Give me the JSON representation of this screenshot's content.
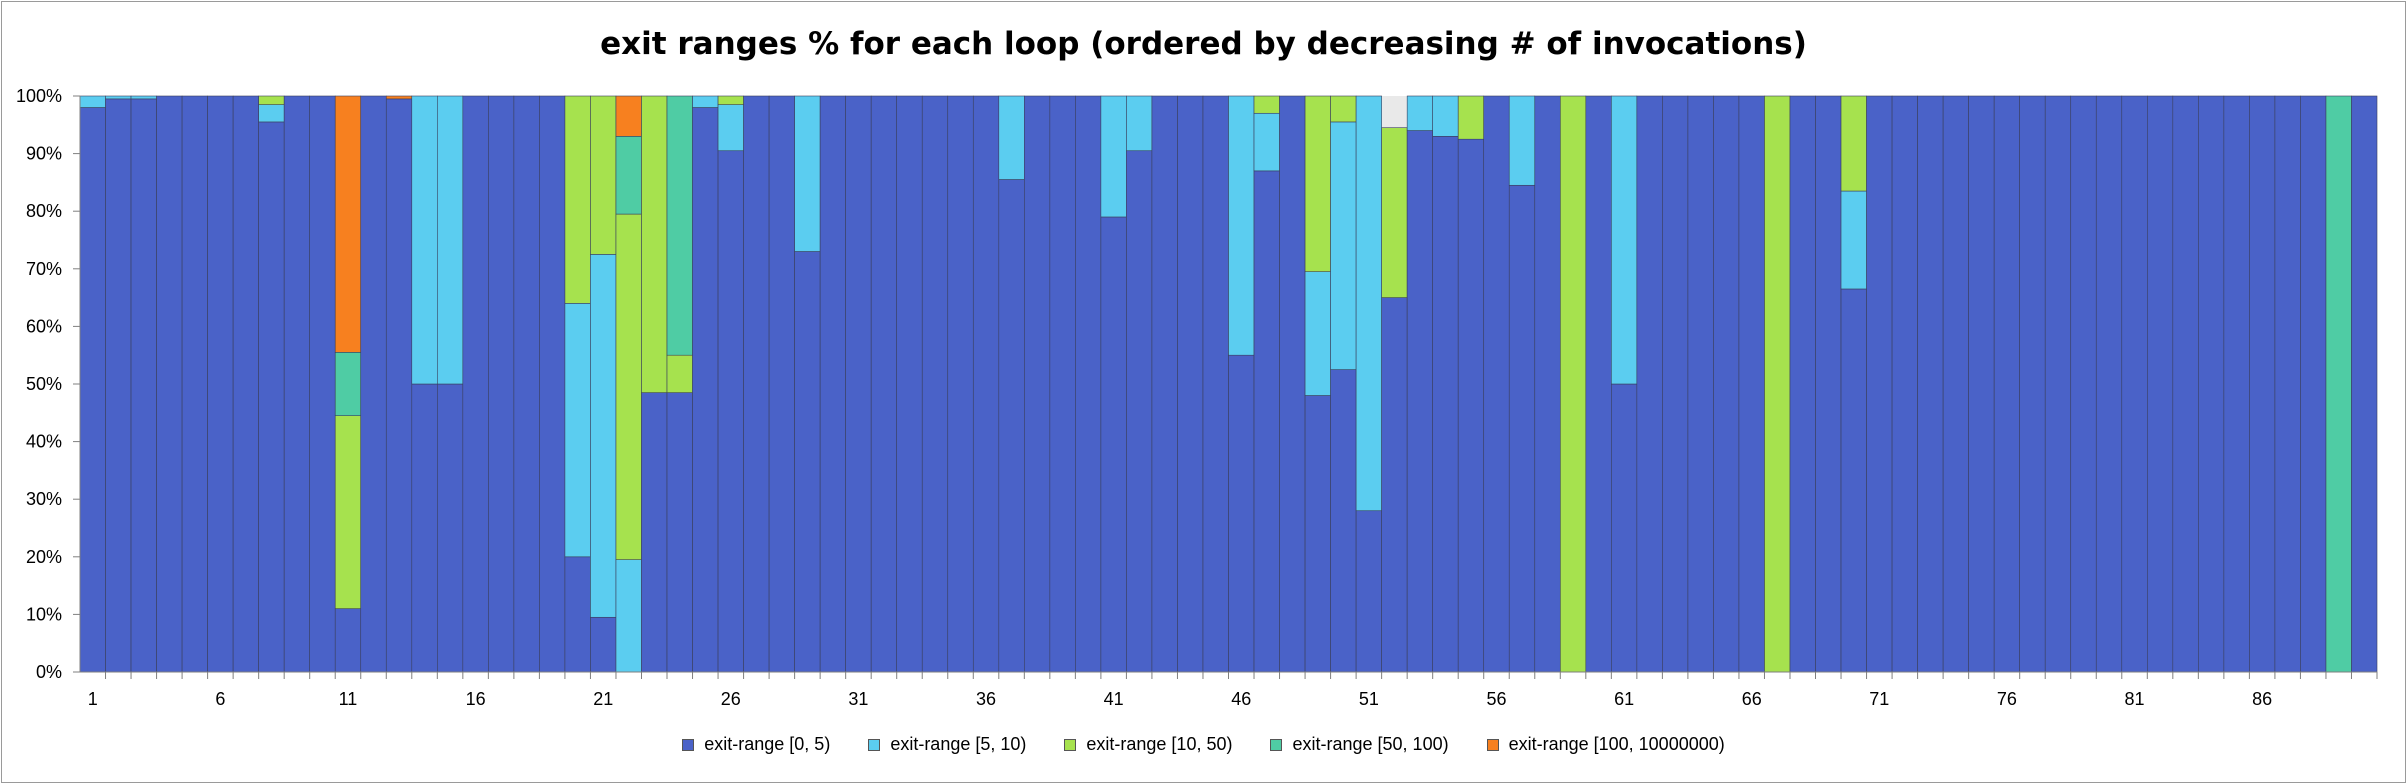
{
  "chart_data": {
    "type": "bar",
    "stacked": true,
    "title": "exit ranges % for each loop (ordered by decreasing # of invocations)",
    "xlabel": "",
    "ylabel": "",
    "ylim": [
      0,
      100
    ],
    "y_ticks": [
      "0%",
      "10%",
      "20%",
      "30%",
      "40%",
      "50%",
      "60%",
      "70%",
      "80%",
      "90%",
      "100%"
    ],
    "x_tick_labels": [
      "1",
      "6",
      "11",
      "16",
      "21",
      "26",
      "31",
      "36",
      "41",
      "46",
      "51",
      "56",
      "61",
      "66",
      "71",
      "76",
      "81",
      "86"
    ],
    "grid": false,
    "legend_position": "bottom",
    "categories": [
      1,
      2,
      3,
      4,
      5,
      6,
      7,
      8,
      9,
      10,
      11,
      12,
      13,
      14,
      15,
      16,
      17,
      18,
      19,
      20,
      21,
      22,
      23,
      24,
      25,
      26,
      27,
      28,
      29,
      30,
      31,
      32,
      33,
      34,
      35,
      36,
      37,
      38,
      39,
      40,
      41,
      42,
      43,
      44,
      45,
      46,
      47,
      48,
      49,
      50,
      51,
      52,
      53,
      54,
      55,
      56,
      57,
      58,
      59,
      60,
      61,
      62,
      63,
      64,
      65,
      66,
      67,
      68,
      69,
      70,
      71,
      72,
      73,
      74,
      75,
      76,
      77,
      78,
      79,
      80,
      81,
      82,
      83,
      84,
      85,
      86,
      87,
      88,
      89,
      90
    ],
    "series": [
      {
        "name": "exit-range [0, 5)",
        "color": "#4a62c8",
        "values": [
          98,
          99.5,
          99.5,
          100,
          100,
          100,
          100,
          95.5,
          100,
          100,
          11,
          100,
          99.5,
          50,
          50,
          100,
          100,
          100,
          100,
          20,
          9.5,
          0,
          48.5,
          48.5,
          98,
          90.5,
          100,
          100,
          73,
          100,
          100,
          100,
          100,
          100,
          100,
          100,
          85.5,
          100,
          100,
          100,
          79,
          90.5,
          100,
          100,
          100,
          55,
          87,
          100,
          48,
          52.5,
          28,
          65,
          94,
          93,
          92.5,
          100,
          84.5,
          100,
          0,
          100,
          50,
          100,
          100,
          100,
          100,
          100,
          0,
          100,
          100,
          66.5,
          100,
          100,
          100,
          100,
          100,
          100,
          100,
          100,
          100,
          100,
          100,
          100,
          100,
          100,
          100,
          100,
          100,
          100,
          0,
          100
        ]
      },
      {
        "name": "exit-range [5, 10)",
        "color": "#5bcdf0",
        "values": [
          2,
          0.5,
          0.5,
          0,
          0,
          0,
          0,
          3,
          0,
          0,
          0,
          0,
          0,
          50,
          50,
          0,
          0,
          0,
          0,
          44,
          63,
          19.5,
          0,
          0,
          2,
          8,
          0,
          0,
          27,
          0,
          0,
          0,
          0,
          0,
          0,
          0,
          14.5,
          0,
          0,
          0,
          21,
          9.5,
          0,
          0,
          0,
          45,
          10,
          0,
          21.5,
          43,
          72,
          0,
          6,
          7,
          0,
          0,
          15.5,
          0,
          0,
          0,
          50,
          0,
          0,
          0,
          0,
          0,
          0,
          0,
          0,
          17,
          0,
          0,
          0,
          0,
          0,
          0,
          0,
          0,
          0,
          0,
          0,
          0,
          0,
          0,
          0,
          0,
          0,
          0,
          0,
          0
        ]
      },
      {
        "name": "exit-range [10, 50)",
        "color": "#a6e24e",
        "values": [
          0,
          0,
          0,
          0,
          0,
          0,
          0,
          1.5,
          0,
          0,
          33.5,
          0,
          0,
          0,
          0,
          0,
          0,
          0,
          0,
          36,
          27.5,
          60,
          51.5,
          6.5,
          0,
          1.5,
          0,
          0,
          0,
          0,
          0,
          0,
          0,
          0,
          0,
          0,
          0,
          0,
          0,
          0,
          0,
          0,
          0,
          0,
          0,
          0,
          3,
          0,
          30.5,
          4.5,
          0,
          29.5,
          0,
          0,
          7.5,
          0,
          0,
          0,
          100,
          0,
          0,
          0,
          0,
          0,
          0,
          0,
          100,
          0,
          0,
          16.5,
          0,
          0,
          0,
          0,
          0,
          0,
          0,
          0,
          0,
          0,
          0,
          0,
          0,
          0,
          0,
          0,
          0,
          0,
          0,
          0
        ]
      },
      {
        "name": "exit-range [50, 100)",
        "color": "#4fcca4",
        "values": [
          0,
          0,
          0,
          0,
          0,
          0,
          0,
          0,
          0,
          0,
          11,
          0,
          0,
          0,
          0,
          0,
          0,
          0,
          0,
          0,
          0,
          13.5,
          0,
          45,
          0,
          0,
          0,
          0,
          0,
          0,
          0,
          0,
          0,
          0,
          0,
          0,
          0,
          0,
          0,
          0,
          0,
          0,
          0,
          0,
          0,
          0,
          0,
          0,
          0,
          0,
          0,
          0,
          0,
          0,
          0,
          0,
          0,
          0,
          0,
          0,
          0,
          0,
          0,
          0,
          0,
          0,
          0,
          0,
          0,
          0,
          0,
          0,
          0,
          0,
          0,
          0,
          0,
          0,
          0,
          0,
          0,
          0,
          0,
          0,
          0,
          0,
          0,
          0,
          100,
          0
        ]
      },
      {
        "name": "exit-range [100, 10000000)",
        "color": "#f7801f",
        "values": [
          0,
          0,
          0,
          0,
          0,
          0,
          0,
          0,
          0,
          0,
          44.5,
          0,
          0.5,
          0,
          0,
          0,
          0,
          0,
          0,
          0,
          0,
          7,
          0,
          0,
          0,
          0,
          0,
          0,
          0,
          0,
          0,
          0,
          0,
          0,
          0,
          0,
          0,
          0,
          0,
          0,
          0,
          0,
          0,
          0,
          0,
          0,
          0,
          0,
          0,
          0,
          0,
          0,
          0,
          0,
          0,
          0,
          0,
          0,
          0,
          0,
          0,
          0,
          0,
          0,
          0,
          0,
          0,
          0,
          0,
          0,
          0,
          0,
          0,
          0,
          0,
          0,
          0,
          0,
          0,
          0,
          0,
          0,
          0,
          0,
          0,
          0,
          0,
          0,
          0,
          0
        ]
      }
    ]
  }
}
